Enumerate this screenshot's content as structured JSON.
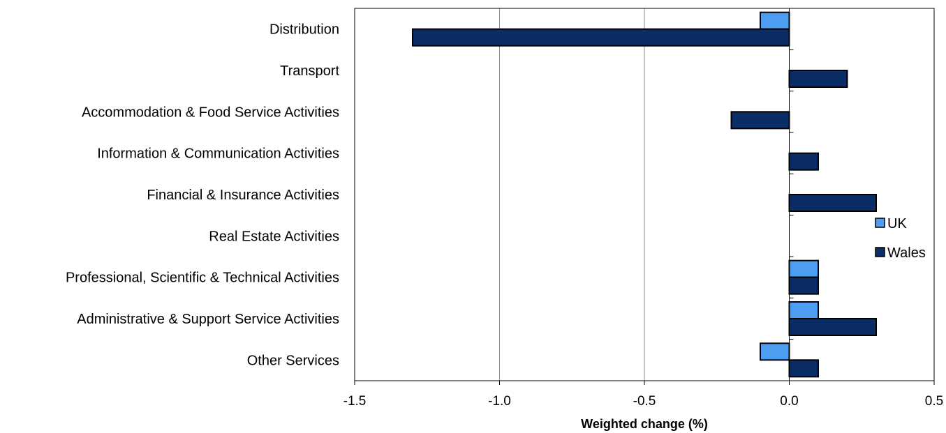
{
  "chart_data": {
    "type": "bar",
    "orientation": "horizontal",
    "categories": [
      "Distribution",
      "Transport",
      "Accommodation & Food Service Activities",
      "Information & Communication Activities",
      "Financial & Insurance Activities",
      "Real Estate Activities",
      "Professional, Scientific & Technical Activities",
      "Administrative & Support Service Activities",
      "Other Services"
    ],
    "series": [
      {
        "name": "UK",
        "color": "#4d9ef2",
        "values": [
          -0.1,
          0,
          0,
          0,
          0,
          0,
          0.1,
          0.1,
          -0.1
        ]
      },
      {
        "name": "Wales",
        "color": "#0b2d66",
        "values": [
          -1.3,
          0.2,
          -0.2,
          0.1,
          0.3,
          0,
          0.1,
          0.3,
          0.1
        ]
      }
    ],
    "xlabel": "Weighted change (%)",
    "xlim": [
      -1.5,
      0.5
    ],
    "xticks": [
      -1.5,
      -1.0,
      -0.5,
      0.0,
      0.5
    ],
    "xtick_labels": [
      "-1.5",
      "-1.0",
      "-0.5",
      "0.0",
      "0.5"
    ],
    "grid": "vertical",
    "legend_position": "right"
  }
}
